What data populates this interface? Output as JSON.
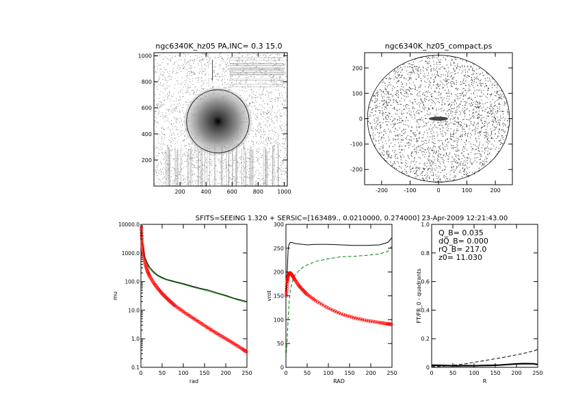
{
  "title_left": "ngc6340K_hz05 PA,INC=  0.3 15.0",
  "title_right": "ngc6340K_hz05_compact.ps",
  "banner": "SFITS=SEEING 1.320 + SERSIC=[163489., 0.0210000, 0.274000]  23-Apr-2009 12:21:43.00",
  "colors": {
    "axes": "#000000",
    "image_gray": "#808080",
    "red": "#ff0000",
    "green": "#008000",
    "black": "#000000"
  },
  "chart_data": [
    {
      "id": "image_left",
      "type": "heatmap",
      "title": "ngc6340K_hz05 PA,INC=  0.3 15.0",
      "xlim": [
        0,
        1024
      ],
      "ylim": [
        0,
        1024
      ],
      "xticks": [
        200,
        400,
        600,
        800,
        1000
      ],
      "yticks": [
        200,
        400,
        600,
        800,
        1000
      ],
      "xlabel": "",
      "ylabel": "",
      "center": [
        491,
        497
      ],
      "ellipse_radius": 240
    },
    {
      "id": "image_right",
      "type": "heatmap",
      "title": "ngc6340K_hz05_compact.ps",
      "xlim": [
        -260,
        260
      ],
      "ylim": [
        -260,
        260
      ],
      "xticks": [
        -200,
        -100,
        0,
        100,
        200
      ],
      "yticks": [
        -200,
        -100,
        0,
        100,
        200
      ],
      "xlabel": "",
      "ylabel": "",
      "circle_radius": 250
    },
    {
      "id": "profile_mu",
      "type": "line",
      "xlabel": "rad",
      "ylabel": "mu",
      "xlim": [
        0,
        250
      ],
      "ylim": [
        0.1,
        10000
      ],
      "yscale": "log",
      "xticks": [
        0,
        50,
        100,
        150,
        200,
        250
      ],
      "ytick_labels": [
        "0.1",
        "1.0",
        "10.0",
        "100.0",
        "1000.0",
        "10000.0"
      ],
      "x": [
        1,
        3,
        5,
        10,
        15,
        20,
        30,
        40,
        50,
        60,
        70,
        80,
        100,
        120,
        140,
        160,
        180,
        200,
        220,
        240,
        250
      ],
      "series": [
        {
          "color": "black",
          "style": "solid",
          "values": [
            9000,
            3000,
            1500,
            700,
            450,
            330,
            220,
            165,
            140,
            120,
            110,
            100,
            85,
            70,
            58,
            50,
            40,
            33,
            26,
            22,
            20
          ]
        },
        {
          "color": "green",
          "style": "solid",
          "values": [
            9000,
            2500,
            1300,
            600,
            390,
            290,
            200,
            155,
            130,
            115,
            104,
            95,
            80,
            65,
            55,
            46,
            38,
            31,
            25,
            20,
            19
          ]
        },
        {
          "color": "red",
          "style": "markers",
          "values": [
            8000,
            2000,
            1000,
            420,
            240,
            160,
            90,
            57,
            38,
            27,
            19.5,
            14.5,
            8.8,
            5.6,
            3.6,
            2.3,
            1.5,
            1.0,
            0.66,
            0.43,
            0.34
          ]
        }
      ]
    },
    {
      "id": "rotation_curve",
      "type": "line",
      "xlabel": "RAD",
      "ylabel": "vrot",
      "xlim": [
        0,
        250
      ],
      "ylim": [
        0,
        300
      ],
      "xticks": [
        0,
        50,
        100,
        150,
        200,
        250
      ],
      "yticks": [
        0,
        50,
        100,
        150,
        200,
        250,
        300
      ],
      "x": [
        1,
        3,
        5,
        7,
        10,
        15,
        20,
        30,
        40,
        50,
        70,
        100,
        130,
        160,
        190,
        220,
        240,
        250
      ],
      "series": [
        {
          "color": "black",
          "style": "solid",
          "values": [
            150,
            200,
            245,
            258,
            262,
            262,
            260,
            259,
            258,
            257,
            258,
            258,
            257,
            256,
            256,
            257,
            262,
            272
          ]
        },
        {
          "color": "green",
          "style": "dashed",
          "values": [
            30,
            60,
            100,
            130,
            160,
            180,
            192,
            202,
            210,
            215,
            222,
            228,
            232,
            233,
            235,
            238,
            243,
            255
          ]
        },
        {
          "color": "red",
          "style": "markers",
          "values": [
            150,
            180,
            192,
            197,
            198,
            193,
            185,
            172,
            162,
            153,
            140,
            124,
            112,
            104,
            98,
            94,
            91,
            90
          ]
        }
      ]
    },
    {
      "id": "fourier",
      "type": "line",
      "xlabel": "R",
      "ylabel": "FT/FR_0 - quadrants",
      "xlim": [
        0,
        250
      ],
      "ylim": [
        0,
        1.0
      ],
      "xticks": [
        0,
        50,
        100,
        150,
        200,
        250
      ],
      "ytick_labels": [
        "0",
        "0.2",
        "0.4",
        "0.6",
        "0.8",
        "1.0"
      ],
      "yticks": [
        0,
        0.2,
        0.4,
        0.6,
        0.8,
        1.0
      ],
      "annotations": [
        "Q_B=  0.035",
        "dQ_B=  0.000",
        "rQ_B=  217.0",
        "z0= 11.030"
      ],
      "x": [
        0,
        20,
        40,
        60,
        80,
        100,
        120,
        140,
        160,
        180,
        200,
        220,
        240,
        250
      ],
      "series": [
        {
          "color": "black",
          "style": "dashed",
          "values": [
            0.005,
            0.006,
            0.01,
            0.018,
            0.025,
            0.035,
            0.045,
            0.055,
            0.065,
            0.075,
            0.088,
            0.1,
            0.115,
            0.125
          ]
        },
        {
          "color": "black",
          "style": "thick",
          "values": [
            0.015,
            0.014,
            0.012,
            0.01,
            0.012,
            0.011,
            0.013,
            0.014,
            0.016,
            0.02,
            0.024,
            0.026,
            0.025,
            0.02
          ]
        }
      ]
    }
  ]
}
